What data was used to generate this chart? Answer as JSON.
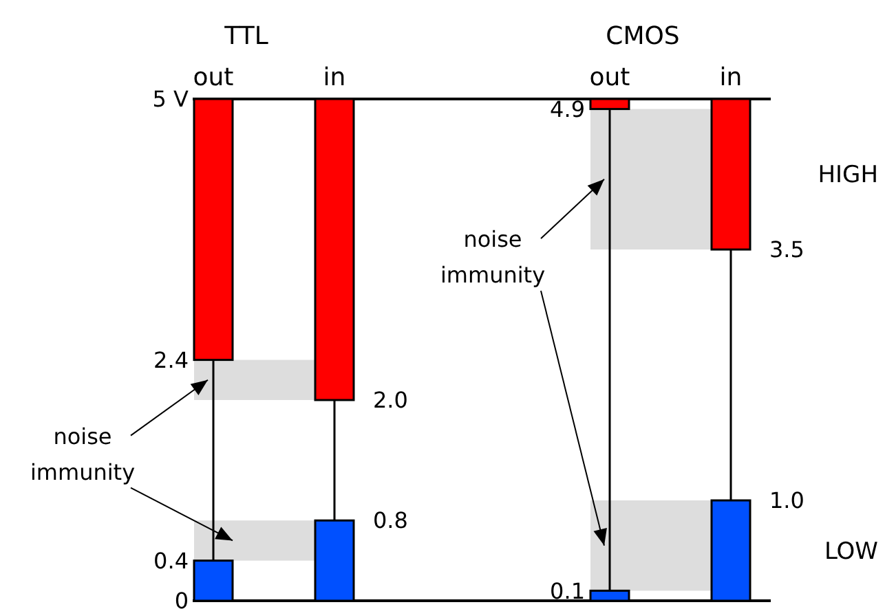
{
  "chart_data": {
    "type": "bar",
    "categories": [
      "out",
      "in",
      "out",
      "in"
    ],
    "annotations": [
      "TTL",
      "CMOS",
      "noise immunity",
      "noise immunity",
      {
        "text": "2.0",
        "x": "in",
        "y": 2.0
      },
      {
        "text": "0.8",
        "x": "in",
        "y": 0.8
      },
      "4.9",
      "3.5",
      "0.1",
      "1.0"
    ],
    "series": [
      {
        "name": "HIGH",
        "color": "#ff0000",
        "base": [
          2.4,
          2.0,
          4.9,
          3.5
        ],
        "values": [
          2.6,
          3.0,
          0.1,
          1.5
        ]
      },
      {
        "name": "LOW",
        "color": "#0050ff",
        "base": [
          0,
          0,
          0,
          0
        ],
        "values": [
          0.4,
          0.8,
          0.1,
          1.0
        ]
      }
    ],
    "ylim": [
      0,
      5
    ],
    "yticks": [
      {
        "value": 0,
        "label": "0"
      },
      0.4,
      2.4,
      {
        "value": 5,
        "label": "5 V"
      }
    ],
    "grid": "x",
    "bands": [
      {
        "axis": "y",
        "from": 2.0,
        "to": 2.4,
        "color": "#dddddd"
      },
      {
        "axis": "y",
        "from": 0.4,
        "to": 0.8,
        "color": "#dddddd"
      },
      {
        "axis": "y",
        "from": 3.5,
        "to": 4.9,
        "color": "#dddddd"
      },
      {
        "axis": "y",
        "from": 0.1,
        "to": 1.0,
        "color": "#dddddd"
      }
    ]
  }
}
